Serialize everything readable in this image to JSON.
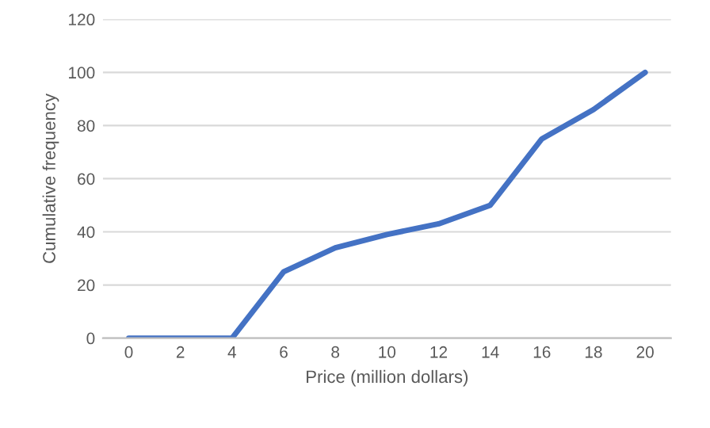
{
  "chart_data": {
    "type": "line",
    "xlabel": "Price (million dollars)",
    "ylabel": "Cumulative frequency",
    "categories": [
      "0",
      "2",
      "4",
      "6",
      "8",
      "10",
      "12",
      "14",
      "16",
      "18",
      "20"
    ],
    "series": [
      {
        "color": "#4472c4",
        "values": [
          0,
          0,
          0,
          25,
          34,
          39,
          43,
          50,
          75,
          86,
          100
        ]
      }
    ],
    "ylim": [
      0,
      120
    ],
    "yticks": [
      0,
      20,
      40,
      60,
      80,
      100,
      120
    ],
    "grid": "y",
    "legend": false,
    "marker": "none",
    "line_style": "solid"
  }
}
